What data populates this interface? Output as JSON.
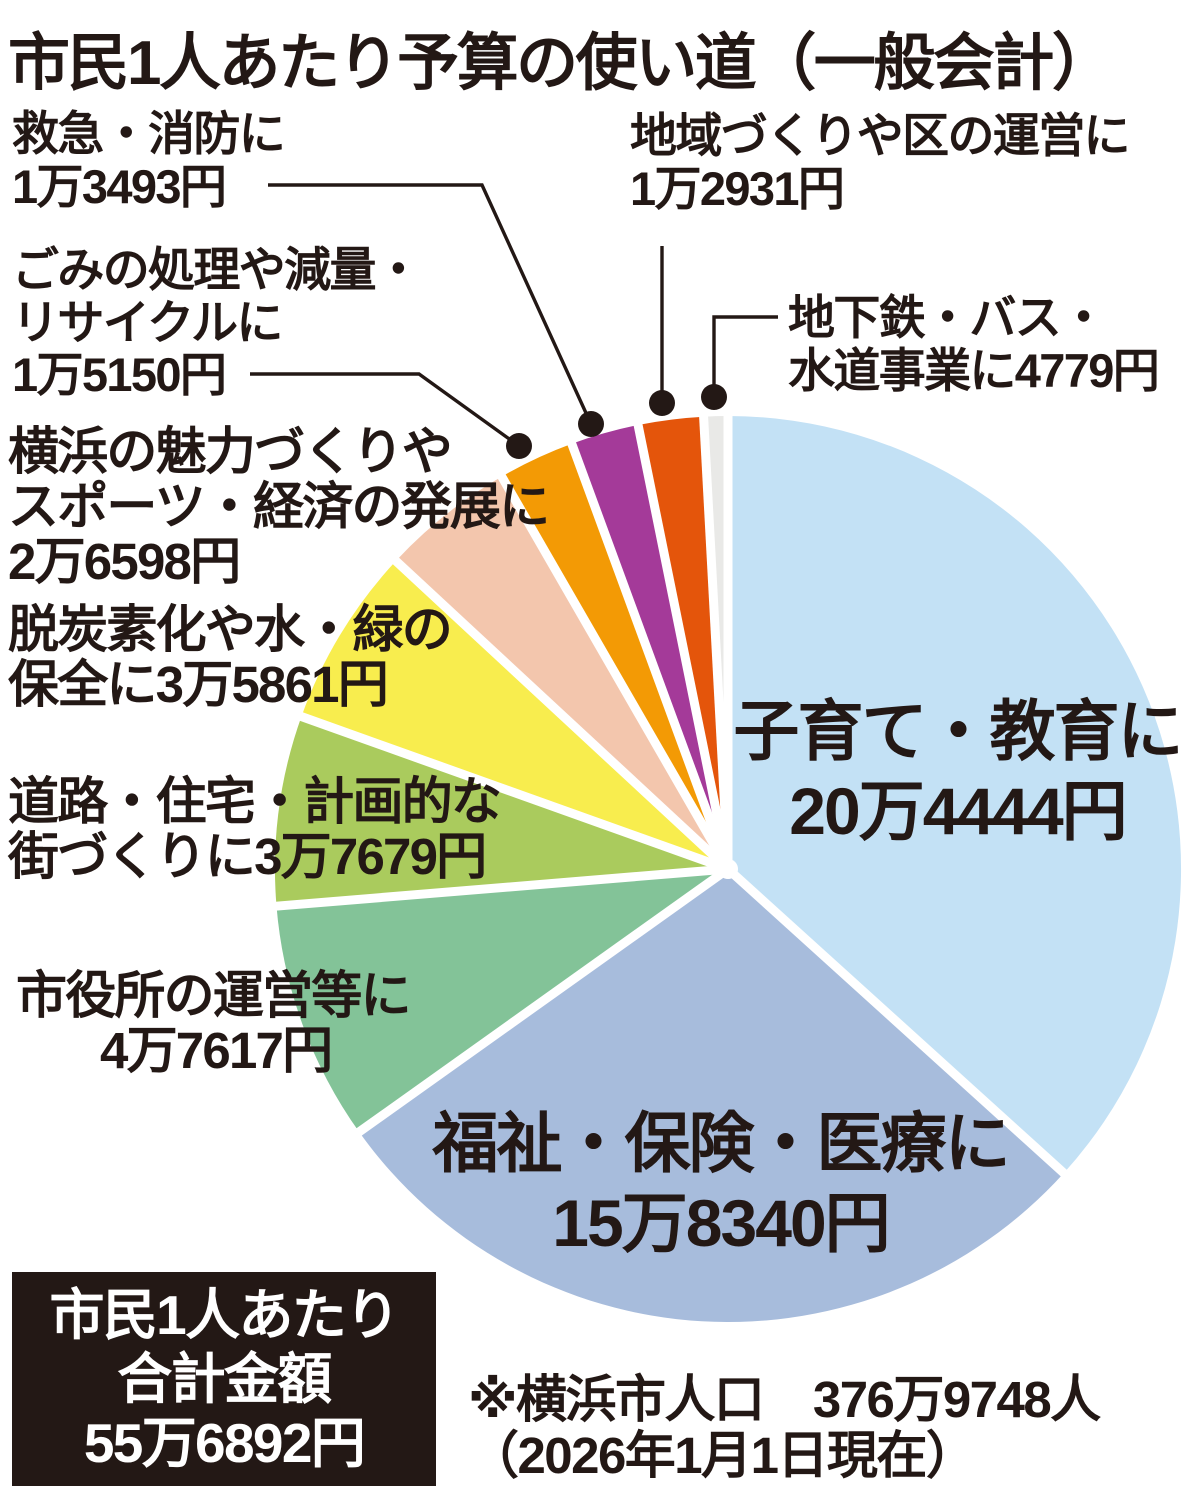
{
  "title": "市民1人あたり予算の使い道（一般会計）",
  "callouts": {
    "emergency": {
      "lines": [
        "救急・消防に",
        "1万3493円"
      ]
    },
    "garbage": {
      "lines": [
        "ごみの処理や減量・",
        "リサイクルに",
        "1万5150円"
      ]
    },
    "attraction": {
      "lines": [
        "横浜の魅力づくりや",
        "スポーツ・経済の発展に",
        "2万6598円"
      ]
    },
    "decarbon": {
      "lines": [
        "脱炭素化や水・緑の",
        "保全に3万5861円"
      ]
    },
    "roads": {
      "lines": [
        "道路・住宅・計画的な",
        "街づくりに3万7679円"
      ]
    },
    "cityhall": {
      "lines": [
        "市役所の運営等に",
        "4万7617円"
      ]
    },
    "community": {
      "lines": [
        "地域づくりや区の運営に",
        "1万2931円"
      ]
    },
    "subway": {
      "lines": [
        "地下鉄・バス・",
        "水道事業に4779円"
      ]
    },
    "childcare": {
      "lines": [
        "子育て・教育に",
        "20万4444円"
      ]
    },
    "welfare": {
      "lines": [
        "福祉・保険・医療に",
        "15万8340円"
      ]
    }
  },
  "total_box": {
    "lines": [
      "市民1人あたり",
      "合計金額",
      "55万6892円"
    ]
  },
  "footnote": {
    "lines": [
      "※横浜市人口　376万9748人",
      "（2026年1月1日現在）"
    ]
  },
  "colors": {
    "ink": "#231815",
    "background": "#ffffff",
    "separator": "#ffffff"
  },
  "chart_data": {
    "type": "pie",
    "title": "市民1人あたり予算の使い道（一般会計）",
    "start_angle_deg": 0,
    "direction": "clockwise",
    "total": 556892,
    "total_text": "55万6892円",
    "unit": "円",
    "slices": [
      {
        "name": "子育て・教育に",
        "value": 204444,
        "value_text": "20万4444円",
        "color": "#c3e1f5"
      },
      {
        "name": "福祉・保険・医療に",
        "value": 158340,
        "value_text": "15万8340円",
        "color": "#a7bcdc"
      },
      {
        "name": "市役所の運営等に",
        "value": 47617,
        "value_text": "4万7617円",
        "color": "#83c398"
      },
      {
        "name": "道路・住宅・計画的な街づくりに",
        "value": 37679,
        "value_text": "3万7679円",
        "color": "#aacb5d"
      },
      {
        "name": "脱炭素化や水・緑の保全に",
        "value": 35861,
        "value_text": "3万5861円",
        "color": "#f8ed4e"
      },
      {
        "name": "横浜の魅力づくりやスポーツ・経済の発展に",
        "value": 26598,
        "value_text": "2万6598円",
        "color": "#f3c6ad"
      },
      {
        "name": "ごみの処理や減量・リサイクルに",
        "value": 15150,
        "value_text": "1万5150円",
        "color": "#f39a05"
      },
      {
        "name": "救急・消防に",
        "value": 13493,
        "value_text": "1万3493円",
        "color": "#a43a99"
      },
      {
        "name": "地域づくりや区の運営に",
        "value": 12931,
        "value_text": "1万2931円",
        "color": "#e4550b"
      },
      {
        "name": "地下鉄・バス・水道事業に",
        "value": 4779,
        "value_text": "4779円",
        "color": "#e9e9e7"
      }
    ]
  }
}
